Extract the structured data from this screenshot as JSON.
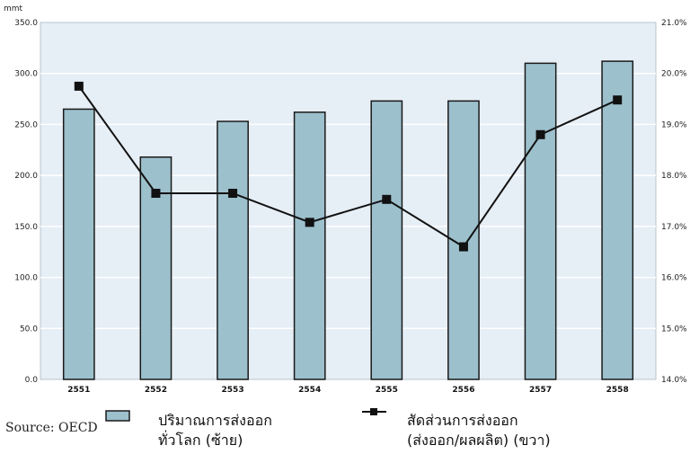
{
  "chart_data": {
    "type": "bar",
    "categories": [
      "2551",
      "2552",
      "2553",
      "2554",
      "2555",
      "2556",
      "2557",
      "2558"
    ],
    "series": [
      {
        "type": "bar",
        "axis": "left",
        "values": [
          265,
          218,
          253,
          262,
          273,
          273,
          310,
          312
        ],
        "color": "#9cc0cc"
      },
      {
        "type": "line",
        "axis": "right",
        "values": [
          19.75,
          17.65,
          17.65,
          17.08,
          17.53,
          16.6,
          18.8,
          19.48
        ],
        "color": "#111111"
      }
    ],
    "ylabel": "mmt",
    "ylim": [
      0,
      350
    ],
    "yticks": [
      "0.0",
      "50.0",
      "100.0",
      "150.0",
      "200.0",
      "250.0",
      "300.0",
      "350.0"
    ],
    "y2lim": [
      14,
      21
    ],
    "y2ticks": [
      "14.0%",
      "15.0%",
      "16.0%",
      "17.0%",
      "18.0%",
      "19.0%",
      "20.0%",
      "21.0%"
    ],
    "grid": true,
    "legend_position": "bottom",
    "legend": [
      {
        "lines": [
          "ปริมาณการส่งออก",
          "ทั่วโลก (ซ้าย)"
        ]
      },
      {
        "lines": [
          "สัดส่วนการส่งออก",
          "(ส่งออก/ผลผลิต) (ขวา)"
        ]
      }
    ],
    "source": "Source: OECD",
    "colors": {
      "plot_bg": "#e6eef6",
      "grid": "#ffffff",
      "bar": "#9cc0cc",
      "bar_edge": "#1a1a1a",
      "line": "#111111"
    }
  }
}
